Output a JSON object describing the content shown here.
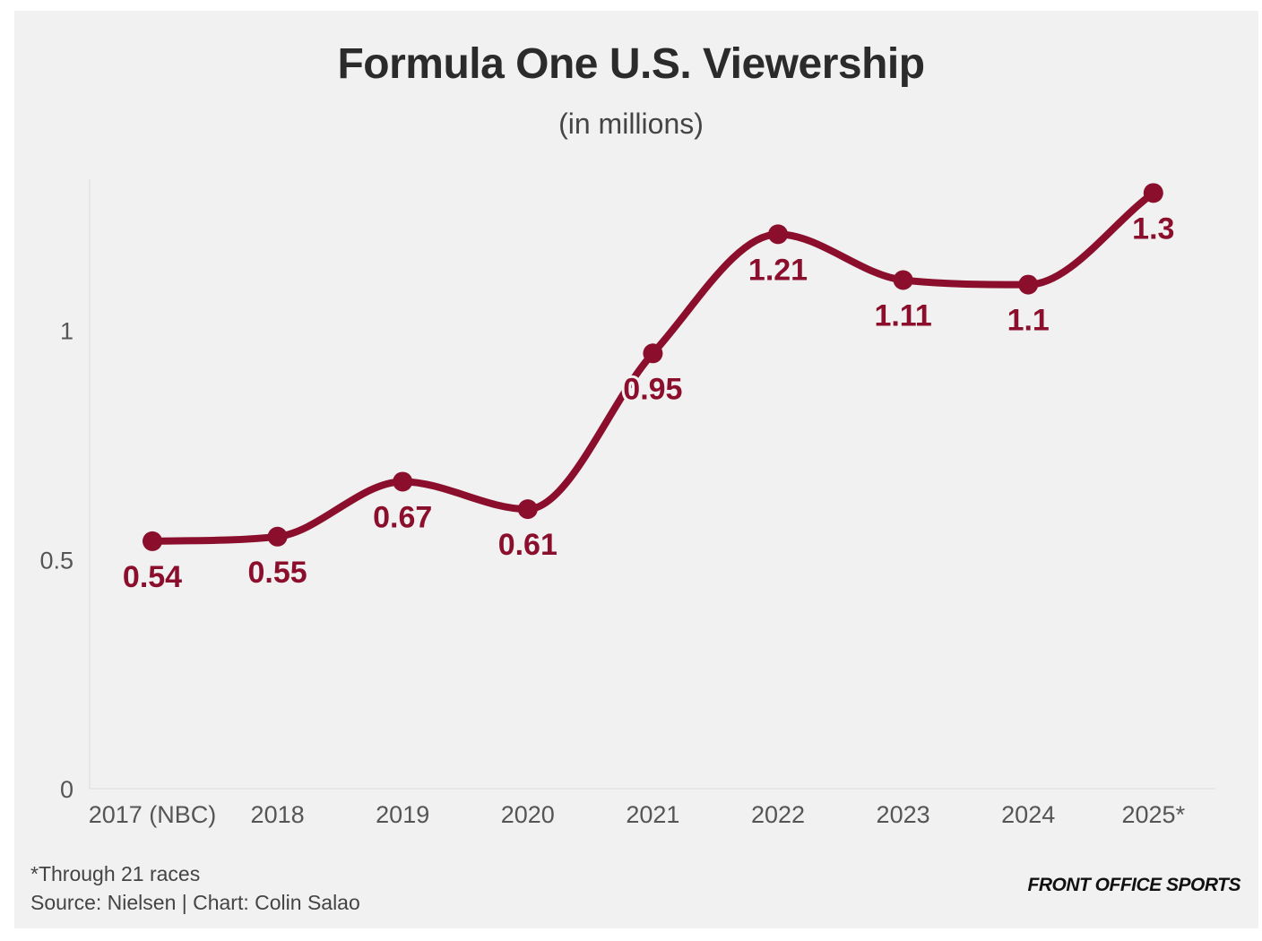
{
  "chart_data": {
    "type": "line",
    "title": "Formula One U.S. Viewership",
    "subtitle": "(in millions)",
    "categories": [
      "2017 (NBC)",
      "2018",
      "2019",
      "2020",
      "2021",
      "2022",
      "2023",
      "2024",
      "2025*"
    ],
    "series": [
      {
        "name": "Viewership",
        "values": [
          0.54,
          0.55,
          0.67,
          0.61,
          0.95,
          1.21,
          1.11,
          1.1,
          1.3
        ],
        "labels": [
          "0.54",
          "0.55",
          "0.67",
          "0.61",
          "0.95",
          "1.21",
          "1.11",
          "1.1",
          "1.3"
        ]
      }
    ],
    "ylim": [
      0,
      1.33
    ],
    "yticks": [
      0,
      0.5,
      1
    ],
    "ytick_labels": [
      "0",
      "0.5",
      "1"
    ],
    "xlabel": "",
    "ylabel": "",
    "grid": false,
    "color": "#8b0f2c"
  },
  "footer": {
    "note": "*Through 21 races",
    "source": "Source: Nielsen | Chart: Colin Salao",
    "brand": "FRONT OFFICE SPORTS"
  }
}
